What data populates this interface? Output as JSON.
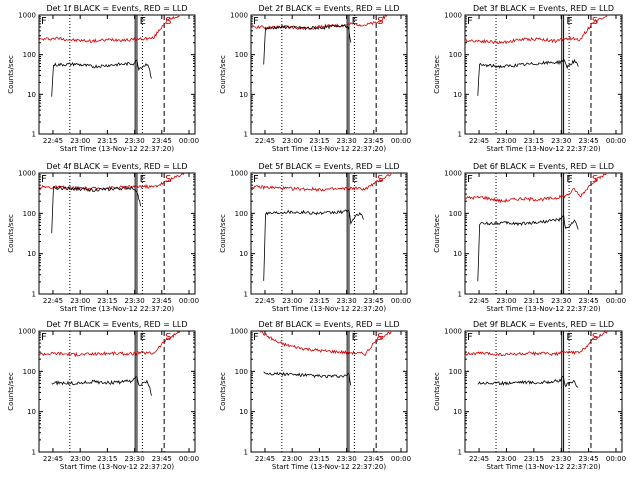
{
  "chart_data": [
    {
      "type": "line",
      "title": "Det 1f BLACK = Events, RED = LLD",
      "xlabel": "Start Time (13-Nov-12 22:37:20)",
      "ylabel": "Counts/sec",
      "yscale": "log",
      "ylim": [
        1,
        1000
      ],
      "yticks": [
        "1",
        "10",
        "100",
        "1000"
      ],
      "xticks": [
        "22:45",
        "23:00",
        "23:15",
        "23:30",
        "23:45",
        "00:00"
      ],
      "markers": [
        "F",
        "E",
        "S"
      ],
      "series": [
        {
          "color": "#d00000",
          "data": [
            [
              0,
              240
            ],
            [
              10,
              260
            ],
            [
              20,
              230
            ],
            [
              30,
              220
            ],
            [
              40,
              240
            ],
            [
              50,
              235
            ],
            [
              56,
              250
            ],
            [
              63,
              260
            ],
            [
              70,
              700
            ],
            [
              78,
              1000
            ]
          ]
        },
        {
          "color": "#000000",
          "data": [
            [
              7,
              9
            ],
            [
              8,
              55
            ],
            [
              20,
              58
            ],
            [
              30,
              50
            ],
            [
              40,
              55
            ],
            [
              52,
              60
            ],
            [
              54,
              70
            ],
            [
              55,
              45
            ],
            [
              60,
              60
            ],
            [
              62,
              25
            ]
          ]
        }
      ]
    },
    {
      "type": "line",
      "title": "Det 2f BLACK = Events, RED = LLD",
      "xlabel": "Start Time (13-Nov-12 22:37:20)",
      "ylabel": "Counts/sec",
      "yscale": "log",
      "ylim": [
        1,
        1000
      ],
      "yticks": [
        "1",
        "10",
        "100",
        "1000"
      ],
      "xticks": [
        "22:45",
        "23:00",
        "23:15",
        "23:30",
        "23:45",
        "00:00"
      ],
      "markers": [
        "F",
        "E",
        "S"
      ],
      "series": [
        {
          "color": "#d00000",
          "data": [
            [
              0,
              520
            ],
            [
              10,
              480
            ],
            [
              20,
              500
            ],
            [
              30,
              450
            ],
            [
              40,
              520
            ],
            [
              50,
              540
            ],
            [
              56,
              600
            ],
            [
              63,
              560
            ],
            [
              70,
              650
            ],
            [
              75,
              1000
            ]
          ]
        },
        {
          "color": "#000000",
          "data": [
            [
              7,
              60
            ],
            [
              8,
              460
            ],
            [
              18,
              500
            ],
            [
              30,
              470
            ],
            [
              40,
              480
            ],
            [
              52,
              570
            ],
            [
              54,
              420
            ],
            [
              55,
              200
            ]
          ]
        }
      ]
    },
    {
      "type": "line",
      "title": "Det 3f BLACK = Events, RED = LLD",
      "xlabel": "Start Time (13-Nov-12 22:37:20)",
      "ylabel": "Counts/sec",
      "yscale": "log",
      "ylim": [
        1,
        1000
      ],
      "yticks": [
        "1",
        "10",
        "100",
        "1000"
      ],
      "xticks": [
        "22:45",
        "23:00",
        "23:15",
        "23:30",
        "23:45",
        "00:00"
      ],
      "markers": [
        "F",
        "E",
        "S"
      ],
      "series": [
        {
          "color": "#d00000",
          "data": [
            [
              0,
              230
            ],
            [
              10,
              220
            ],
            [
              20,
              200
            ],
            [
              30,
              240
            ],
            [
              40,
              250
            ],
            [
              50,
              220
            ],
            [
              56,
              260
            ],
            [
              63,
              240
            ],
            [
              70,
              650
            ],
            [
              78,
              1000
            ]
          ]
        },
        {
          "color": "#000000",
          "data": [
            [
              7,
              10
            ],
            [
              8,
              55
            ],
            [
              20,
              50
            ],
            [
              30,
              55
            ],
            [
              40,
              60
            ],
            [
              52,
              65
            ],
            [
              54,
              75
            ],
            [
              56,
              50
            ],
            [
              60,
              70
            ],
            [
              62,
              50
            ]
          ]
        }
      ]
    },
    {
      "type": "line",
      "title": "Det 4f BLACK = Events, RED = LLD",
      "xlabel": "Start Time (13-Nov-12 22:37:20)",
      "ylabel": "Counts/sec",
      "yscale": "log",
      "ylim": [
        1,
        1000
      ],
      "yticks": [
        "1",
        "10",
        "100",
        "1000"
      ],
      "xticks": [
        "22:45",
        "23:00",
        "23:15",
        "23:30",
        "23:45",
        "00:00"
      ],
      "markers": [
        "F",
        "E",
        "S"
      ],
      "series": [
        {
          "color": "#d00000",
          "data": [
            [
              0,
              450
            ],
            [
              10,
              440
            ],
            [
              20,
              420
            ],
            [
              30,
              410
            ],
            [
              40,
              430
            ],
            [
              50,
              450
            ],
            [
              56,
              470
            ],
            [
              63,
              450
            ],
            [
              70,
              600
            ],
            [
              80,
              1000
            ]
          ]
        },
        {
          "color": "#000000",
          "data": [
            [
              7,
              30
            ],
            [
              8,
              430
            ],
            [
              20,
              410
            ],
            [
              30,
              380
            ],
            [
              40,
              400
            ],
            [
              52,
              430
            ],
            [
              54,
              350
            ],
            [
              56,
              150
            ]
          ]
        }
      ]
    },
    {
      "type": "line",
      "title": "Det 5f BLACK = Events, RED = LLD",
      "xlabel": "Start Time (13-Nov-12 22:37:20)",
      "ylabel": "Counts/sec",
      "yscale": "log",
      "ylim": [
        1,
        1000
      ],
      "yticks": [
        "1",
        "10",
        "100",
        "1000"
      ],
      "xticks": [
        "22:45",
        "23:00",
        "23:15",
        "23:30",
        "23:45",
        "00:00"
      ],
      "markers": [
        "F",
        "E",
        "S"
      ],
      "series": [
        {
          "color": "#d00000",
          "data": [
            [
              0,
              450
            ],
            [
              10,
              440
            ],
            [
              20,
              410
            ],
            [
              30,
              400
            ],
            [
              40,
              390
            ],
            [
              50,
              400
            ],
            [
              56,
              420
            ],
            [
              63,
              400
            ],
            [
              70,
              620
            ],
            [
              78,
              1000
            ]
          ]
        },
        {
          "color": "#000000",
          "data": [
            [
              7,
              2
            ],
            [
              8,
              100
            ],
            [
              20,
              110
            ],
            [
              30,
              105
            ],
            [
              40,
              100
            ],
            [
              52,
              110
            ],
            [
              54,
              120
            ],
            [
              55,
              60
            ],
            [
              60,
              105
            ],
            [
              62,
              70
            ]
          ]
        }
      ]
    },
    {
      "type": "line",
      "title": "Det 6f BLACK = Events, RED = LLD",
      "xlabel": "Start Time (13-Nov-12 22:37:20)",
      "ylabel": "Counts/sec",
      "yscale": "log",
      "ylim": [
        1,
        1000
      ],
      "yticks": [
        "1",
        "10",
        "100",
        "1000"
      ],
      "xticks": [
        "22:45",
        "23:00",
        "23:15",
        "23:30",
        "23:45",
        "00:00"
      ],
      "markers": [
        "F",
        "E",
        "S"
      ],
      "series": [
        {
          "color": "#d00000",
          "data": [
            [
              0,
              240
            ],
            [
              10,
              250
            ],
            [
              20,
              200
            ],
            [
              30,
              230
            ],
            [
              40,
              220
            ],
            [
              50,
              240
            ],
            [
              56,
              280
            ],
            [
              60,
              400
            ],
            [
              63,
              260
            ],
            [
              70,
              600
            ],
            [
              78,
              1000
            ]
          ]
        },
        {
          "color": "#000000",
          "data": [
            [
              7,
              2
            ],
            [
              8,
              55
            ],
            [
              20,
              58
            ],
            [
              30,
              55
            ],
            [
              40,
              60
            ],
            [
              52,
              70
            ],
            [
              54,
              85
            ],
            [
              55,
              40
            ],
            [
              60,
              65
            ],
            [
              62,
              40
            ]
          ]
        }
      ]
    },
    {
      "type": "line",
      "title": "Det 7f BLACK = Events, RED = LLD",
      "xlabel": "Start Time (13-Nov-12 22:37:20)",
      "ylabel": "Counts/sec",
      "yscale": "log",
      "ylim": [
        1,
        1000
      ],
      "yticks": [
        "1",
        "10",
        "100",
        "1000"
      ],
      "xticks": [
        "22:45",
        "23:00",
        "23:15",
        "23:30",
        "23:45",
        "00:00"
      ],
      "markers": [
        "F",
        "E",
        "S"
      ],
      "series": [
        {
          "color": "#d00000",
          "data": [
            [
              0,
              270
            ],
            [
              10,
              280
            ],
            [
              20,
              260
            ],
            [
              30,
              270
            ],
            [
              40,
              280
            ],
            [
              50,
              270
            ],
            [
              56,
              290
            ],
            [
              63,
              280
            ],
            [
              70,
              600
            ],
            [
              78,
              1000
            ]
          ]
        },
        {
          "color": "#000000",
          "data": [
            [
              7,
              50
            ],
            [
              8,
              52
            ],
            [
              20,
              50
            ],
            [
              30,
              55
            ],
            [
              40,
              52
            ],
            [
              52,
              58
            ],
            [
              54,
              75
            ],
            [
              55,
              45
            ],
            [
              60,
              55
            ],
            [
              62,
              25
            ]
          ]
        }
      ]
    },
    {
      "type": "line",
      "title": "Det 8f BLACK = Events, RED = LLD",
      "xlabel": "Start Time (13-Nov-12 22:37:20)",
      "ylabel": "Counts/sec",
      "yscale": "log",
      "ylim": [
        1,
        1000
      ],
      "yticks": [
        "1",
        "10",
        "100",
        "1000"
      ],
      "xticks": [
        "22:45",
        "23:00",
        "23:15",
        "23:30",
        "23:45",
        "00:00"
      ],
      "markers": [
        "F",
        "E",
        "S"
      ],
      "series": [
        {
          "color": "#d00000",
          "data": [
            [
              5,
              1000
            ],
            [
              10,
              700
            ],
            [
              15,
              520
            ],
            [
              20,
              440
            ],
            [
              30,
              360
            ],
            [
              40,
              320
            ],
            [
              50,
              300
            ],
            [
              56,
              290
            ],
            [
              63,
              270
            ],
            [
              70,
              650
            ],
            [
              78,
              1000
            ]
          ]
        },
        {
          "color": "#000000",
          "data": [
            [
              7,
              100
            ],
            [
              8,
              90
            ],
            [
              20,
              85
            ],
            [
              30,
              80
            ],
            [
              40,
              75
            ],
            [
              52,
              75
            ],
            [
              54,
              85
            ],
            [
              55,
              45
            ]
          ]
        }
      ]
    },
    {
      "type": "line",
      "title": "Det 9f BLACK = Events, RED = LLD",
      "xlabel": "Start Time (13-Nov-12 22:37:20)",
      "ylabel": "Counts/sec",
      "yscale": "log",
      "ylim": [
        1,
        1000
      ],
      "yticks": [
        "1",
        "10",
        "100",
        "1000"
      ],
      "xticks": [
        "22:45",
        "23:00",
        "23:15",
        "23:30",
        "23:45",
        "00:00"
      ],
      "markers": [
        "F",
        "E",
        "S"
      ],
      "series": [
        {
          "color": "#d00000",
          "data": [
            [
              0,
              270
            ],
            [
              10,
              280
            ],
            [
              20,
              260
            ],
            [
              30,
              270
            ],
            [
              40,
              280
            ],
            [
              50,
              270
            ],
            [
              56,
              300
            ],
            [
              63,
              290
            ],
            [
              70,
              620
            ],
            [
              78,
              1000
            ]
          ]
        },
        {
          "color": "#000000",
          "data": [
            [
              7,
              50
            ],
            [
              8,
              52
            ],
            [
              20,
              50
            ],
            [
              30,
              55
            ],
            [
              40,
              52
            ],
            [
              52,
              58
            ],
            [
              54,
              72
            ],
            [
              55,
              45
            ],
            [
              60,
              55
            ],
            [
              62,
              40
            ]
          ]
        }
      ]
    }
  ]
}
